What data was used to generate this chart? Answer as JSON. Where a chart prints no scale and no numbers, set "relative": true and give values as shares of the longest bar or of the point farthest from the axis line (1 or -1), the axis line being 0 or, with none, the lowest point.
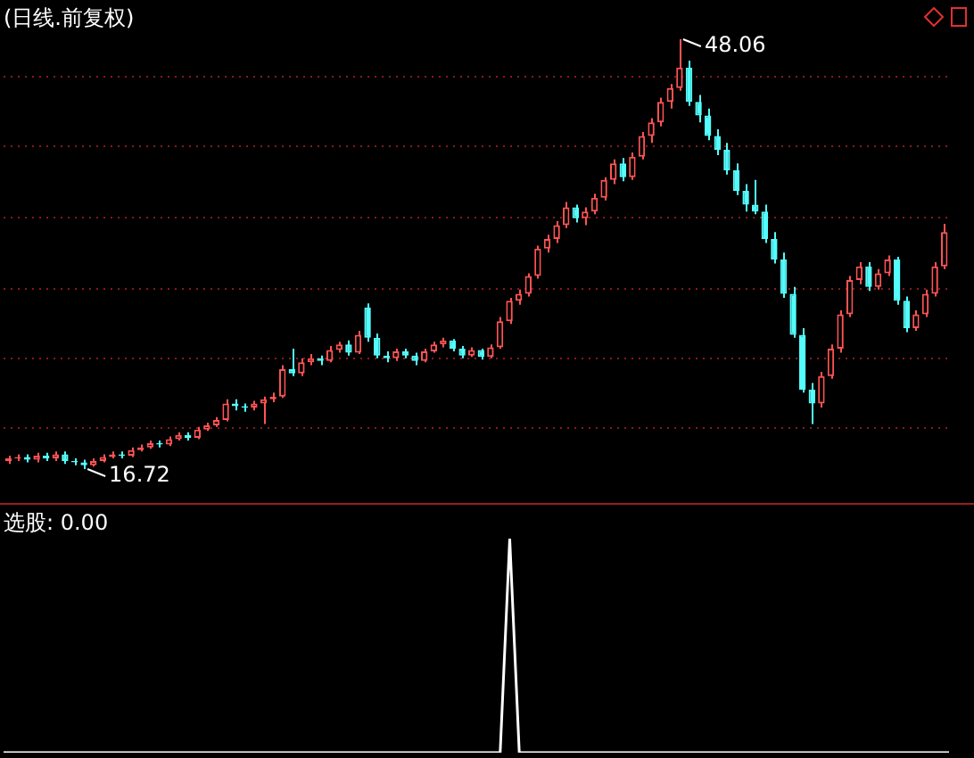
{
  "chart_data": [
    {
      "type": "candlestick",
      "title": "(日线.前复权)",
      "categories": [
        null,
        null,
        null,
        null,
        null,
        null,
        null,
        null,
        null,
        null,
        null,
        null,
        null,
        null,
        null,
        null,
        null,
        null,
        null,
        null,
        null,
        null,
        null,
        null,
        null,
        null,
        null,
        null,
        null,
        null,
        null,
        null,
        null,
        null,
        null,
        null,
        null,
        null,
        null,
        null,
        null,
        null,
        null,
        null,
        null,
        null,
        null,
        null,
        null,
        null,
        null,
        null,
        null,
        null,
        null,
        null,
        null,
        null,
        null,
        null,
        null,
        null,
        null,
        null,
        null,
        null,
        null,
        null,
        null,
        null,
        null,
        null,
        null,
        null,
        null,
        null,
        null,
        null,
        null,
        null,
        null,
        null,
        null,
        null,
        null,
        null,
        null,
        null,
        null,
        null,
        null,
        null,
        null,
        null,
        null,
        null,
        null,
        null,
        null,
        null
      ],
      "ohlc": [
        [
          17.3,
          17.7,
          17.1,
          17.5
        ],
        [
          17.5,
          17.8,
          17.3,
          17.6
        ],
        [
          17.6,
          17.8,
          17.2,
          17.4
        ],
        [
          17.4,
          17.9,
          17.2,
          17.7
        ],
        [
          17.7,
          17.9,
          17.3,
          17.5
        ],
        [
          17.5,
          18.0,
          17.3,
          17.8
        ],
        [
          17.8,
          18.0,
          17.1,
          17.3
        ],
        [
          17.3,
          17.5,
          17.0,
          17.2
        ],
        [
          17.2,
          17.4,
          16.72,
          17.0
        ],
        [
          17.0,
          17.5,
          16.9,
          17.3
        ],
        [
          17.3,
          17.8,
          17.2,
          17.6
        ],
        [
          17.6,
          18.0,
          17.5,
          17.8
        ],
        [
          17.8,
          18.0,
          17.5,
          17.7
        ],
        [
          17.7,
          18.3,
          17.6,
          18.1
        ],
        [
          18.1,
          18.5,
          18.0,
          18.3
        ],
        [
          18.3,
          18.8,
          18.2,
          18.6
        ],
        [
          18.6,
          18.8,
          18.3,
          18.5
        ],
        [
          18.5,
          19.1,
          18.4,
          18.9
        ],
        [
          18.9,
          19.4,
          18.8,
          19.2
        ],
        [
          19.2,
          19.4,
          18.8,
          19.0
        ],
        [
          19.0,
          19.8,
          18.9,
          19.6
        ],
        [
          19.6,
          20.1,
          19.5,
          19.9
        ],
        [
          19.9,
          20.5,
          19.8,
          20.3
        ],
        [
          20.3,
          21.8,
          20.2,
          21.5
        ],
        [
          21.5,
          21.8,
          21.0,
          21.3
        ],
        [
          21.3,
          21.5,
          20.9,
          21.2
        ],
        [
          21.2,
          21.7,
          21.0,
          21.5
        ],
        [
          21.5,
          22.0,
          20.0,
          21.8
        ],
        [
          21.8,
          22.3,
          21.6,
          22.0
        ],
        [
          22.0,
          24.3,
          21.9,
          24.0
        ],
        [
          24.0,
          25.5,
          23.5,
          23.7
        ],
        [
          23.7,
          24.8,
          23.5,
          24.5
        ],
        [
          24.5,
          25.1,
          24.3,
          24.8
        ],
        [
          24.8,
          25.0,
          24.3,
          24.6
        ],
        [
          24.6,
          25.7,
          24.5,
          25.4
        ],
        [
          25.4,
          26.0,
          25.2,
          25.8
        ],
        [
          25.8,
          26.1,
          25.0,
          25.2
        ],
        [
          25.2,
          26.8,
          25.1,
          26.5
        ],
        [
          28.5,
          28.8,
          26.0,
          26.3
        ],
        [
          26.3,
          26.6,
          24.8,
          25.0
        ],
        [
          25.0,
          25.3,
          24.5,
          24.8
        ],
        [
          24.8,
          25.5,
          24.6,
          25.3
        ],
        [
          25.3,
          25.5,
          24.8,
          25.0
        ],
        [
          25.0,
          25.2,
          24.3,
          24.6
        ],
        [
          24.6,
          25.5,
          24.5,
          25.3
        ],
        [
          25.3,
          26.0,
          25.2,
          25.8
        ],
        [
          25.8,
          26.3,
          25.6,
          26.1
        ],
        [
          26.1,
          26.2,
          25.3,
          25.5
        ],
        [
          25.5,
          25.7,
          24.8,
          25.0
        ],
        [
          25.0,
          25.6,
          24.9,
          25.4
        ],
        [
          25.4,
          25.5,
          24.7,
          24.9
        ],
        [
          24.9,
          25.8,
          24.8,
          25.6
        ],
        [
          25.6,
          27.8,
          25.5,
          27.5
        ],
        [
          27.5,
          29.2,
          27.3,
          29.0
        ],
        [
          29.0,
          29.8,
          28.7,
          29.5
        ],
        [
          29.5,
          31.0,
          29.3,
          30.8
        ],
        [
          30.8,
          33.0,
          30.6,
          32.8
        ],
        [
          32.8,
          33.8,
          32.5,
          33.5
        ],
        [
          33.5,
          34.8,
          33.2,
          34.5
        ],
        [
          34.5,
          36.2,
          34.3,
          35.8
        ],
        [
          35.8,
          36.0,
          34.7,
          35.0
        ],
        [
          35.0,
          35.8,
          34.5,
          35.5
        ],
        [
          35.5,
          36.8,
          35.3,
          36.5
        ],
        [
          36.5,
          38.0,
          36.3,
          37.8
        ],
        [
          37.8,
          39.3,
          37.5,
          39.0
        ],
        [
          39.0,
          39.4,
          37.7,
          38.0
        ],
        [
          38.0,
          39.8,
          37.8,
          39.5
        ],
        [
          39.5,
          41.3,
          39.3,
          41.0
        ],
        [
          41.0,
          42.3,
          40.5,
          42.0
        ],
        [
          42.0,
          43.8,
          41.7,
          43.5
        ],
        [
          43.5,
          44.8,
          43.0,
          44.5
        ],
        [
          44.5,
          48.06,
          44.3,
          46.0
        ],
        [
          46.0,
          46.5,
          43.2,
          43.5
        ],
        [
          43.5,
          44.0,
          42.0,
          42.5
        ],
        [
          42.5,
          43.0,
          40.7,
          41.0
        ],
        [
          41.0,
          41.5,
          39.6,
          40.0
        ],
        [
          40.0,
          40.5,
          38.2,
          38.5
        ],
        [
          38.5,
          39.0,
          36.7,
          37.0
        ],
        [
          37.0,
          37.5,
          35.5,
          36.0
        ],
        [
          36.0,
          37.8,
          35.3,
          35.5
        ],
        [
          35.5,
          36.0,
          33.2,
          33.5
        ],
        [
          33.5,
          34.0,
          31.7,
          32.0
        ],
        [
          32.0,
          32.5,
          29.2,
          29.5
        ],
        [
          29.5,
          30.0,
          26.3,
          26.5
        ],
        [
          26.5,
          27.0,
          22.3,
          22.5
        ],
        [
          22.5,
          23.0,
          20.0,
          21.5
        ],
        [
          21.5,
          23.8,
          21.2,
          23.5
        ],
        [
          23.5,
          25.8,
          23.3,
          25.5
        ],
        [
          25.5,
          28.3,
          25.2,
          28.0
        ],
        [
          28.0,
          30.8,
          27.8,
          30.5
        ],
        [
          30.5,
          31.8,
          30.2,
          31.5
        ],
        [
          31.5,
          31.8,
          29.7,
          30.0
        ],
        [
          30.0,
          31.3,
          29.8,
          31.0
        ],
        [
          31.0,
          32.3,
          30.8,
          32.0
        ],
        [
          32.0,
          32.2,
          28.7,
          29.0
        ],
        [
          29.0,
          29.3,
          26.7,
          27.0
        ],
        [
          27.0,
          28.3,
          26.8,
          28.0
        ],
        [
          28.0,
          29.8,
          27.8,
          29.5
        ],
        [
          29.5,
          31.8,
          29.3,
          31.5
        ],
        [
          31.5,
          34.6,
          31.3,
          34.0
        ]
      ],
      "colors": [
        "#ff5454",
        "#ff5454",
        "#54fcfc",
        "#ff5454",
        "#54fcfc",
        "#ff5454",
        "#54fcfc",
        "#54fcfc",
        "#54fcfc",
        "#ff5454",
        "#ff5454",
        "#ff5454",
        "#54fcfc",
        "#ff5454",
        "#ff5454",
        "#ff5454",
        "#54fcfc",
        "#ff5454",
        "#ff5454",
        "#54fcfc",
        "#ff5454",
        "#ff5454",
        "#ff5454",
        "#ff5454",
        "#54fcfc",
        "#54fcfc",
        "#ff5454",
        "#ff5454",
        "#ff5454",
        "#ff5454",
        "#54fcfc",
        "#ff5454",
        "#ff5454",
        "#54fcfc",
        "#ff5454",
        "#ff5454",
        "#54fcfc",
        "#ff5454",
        "#54fcfc",
        "#54fcfc",
        "#54fcfc",
        "#ff5454",
        "#54fcfc",
        "#54fcfc",
        "#ff5454",
        "#ff5454",
        "#ff5454",
        "#54fcfc",
        "#54fcfc",
        "#ff5454",
        "#54fcfc",
        "#ff5454",
        "#ff5454",
        "#ff5454",
        "#ff5454",
        "#ff5454",
        "#ff5454",
        "#ff5454",
        "#ff5454",
        "#ff5454",
        "#54fcfc",
        "#ff5454",
        "#ff5454",
        "#ff5454",
        "#ff5454",
        "#54fcfc",
        "#ff5454",
        "#ff5454",
        "#ff5454",
        "#ff5454",
        "#ff5454",
        "#ff5454",
        "#54fcfc",
        "#54fcfc",
        "#54fcfc",
        "#54fcfc",
        "#54fcfc",
        "#54fcfc",
        "#54fcfc",
        "#54fcfc",
        "#54fcfc",
        "#54fcfc",
        "#54fcfc",
        "#54fcfc",
        "#54fcfc",
        "#54fcfc",
        "#ff5454",
        "#ff5454",
        "#ff5454",
        "#ff5454",
        "#ff5454",
        "#54fcfc",
        "#ff5454",
        "#ff5454",
        "#54fcfc",
        "#54fcfc",
        "#ff5454",
        "#ff5454",
        "#ff5454",
        "#ff5454"
      ],
      "yticks": [
        {
          "value": 19.71,
          "label": null
        },
        {
          "value": 24.78,
          "label": null
        },
        {
          "value": 29.86,
          "label": null
        },
        {
          "value": 35.06,
          "label": null
        },
        {
          "value": 40.26,
          "label": null
        },
        {
          "value": 45.33,
          "label": null
        }
      ],
      "grid": "y",
      "tick_labels": false,
      "legend": false,
      "annotations": [
        "48.06",
        "16.72"
      ]
    },
    {
      "type": "line",
      "title": "选股: 0.00",
      "relative": true,
      "categories": [
        null,
        null,
        null,
        null,
        null,
        null,
        null,
        null,
        null,
        null,
        null,
        null,
        null,
        null,
        null,
        null,
        null,
        null,
        null,
        null,
        null,
        null,
        null,
        null,
        null,
        null,
        null,
        null,
        null,
        null,
        null,
        null,
        null,
        null,
        null,
        null,
        null,
        null,
        null,
        null,
        null,
        null,
        null,
        null,
        null,
        null,
        null,
        null,
        null,
        null,
        null,
        null,
        null,
        null,
        null,
        null,
        null,
        null,
        null,
        null,
        null,
        null,
        null,
        null,
        null,
        null,
        null,
        null,
        null,
        null,
        null,
        null,
        null,
        null,
        null,
        null,
        null,
        null,
        null,
        null,
        null,
        null,
        null,
        null,
        null,
        null,
        null,
        null,
        null,
        null,
        null,
        null,
        null,
        null,
        null,
        null,
        null,
        null,
        null,
        null
      ],
      "series": [
        {
          "color": "#ffffff",
          "values": [
            0,
            0,
            0,
            0,
            0,
            0,
            0,
            0,
            0,
            0,
            0,
            0,
            0,
            0,
            0,
            0,
            0,
            0,
            0,
            0,
            0,
            0,
            0,
            0,
            0,
            0,
            0,
            0,
            0,
            0,
            0,
            0,
            0,
            0,
            0,
            0,
            0,
            0,
            0,
            0,
            0,
            0,
            0,
            0,
            0,
            0,
            0,
            0,
            0,
            0,
            0,
            0,
            0,
            1,
            0,
            0,
            0,
            0,
            0,
            0,
            0,
            0,
            0,
            0,
            0,
            0,
            0,
            0,
            0,
            0,
            0,
            0,
            0,
            0,
            0,
            0,
            0,
            0,
            0,
            0,
            0,
            0,
            0,
            0,
            0,
            0,
            0,
            0,
            0,
            0,
            0,
            0,
            0,
            0,
            0,
            0,
            0,
            0,
            0,
            0
          ]
        }
      ],
      "legend": false,
      "marker": "none"
    }
  ]
}
